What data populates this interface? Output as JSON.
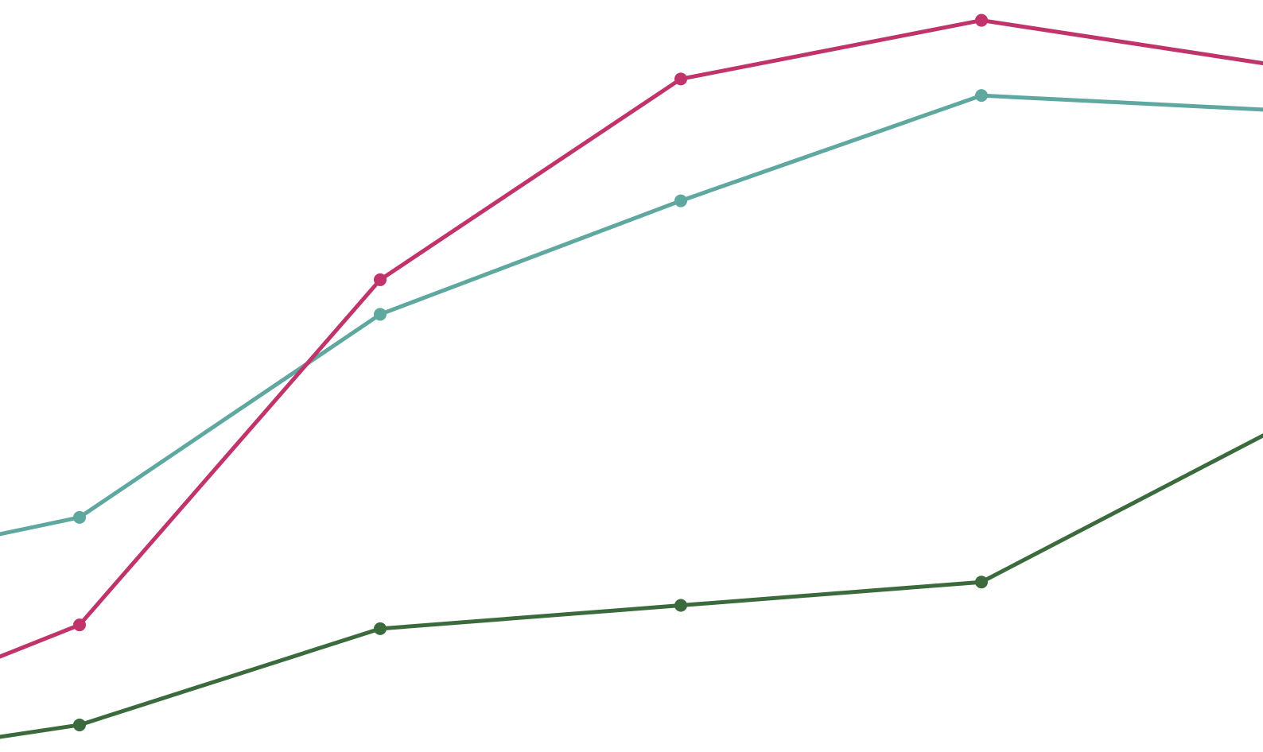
{
  "chart_data": {
    "type": "line",
    "categories": [
      null,
      null,
      null,
      null,
      null,
      null
    ],
    "ylim": [
      0,
      100
    ],
    "series": [
      {
        "color": "#5fa8a0",
        "values": [
          22.8,
          31.2,
          58.2,
          73.3,
          87.3,
          85.3
        ]
      },
      {
        "color": "#c0336b",
        "values": [
          1.0,
          16.9,
          62.8,
          89.5,
          97.3,
          91.2
        ]
      },
      {
        "color": "#3b6b3d",
        "values": [
          -2.4,
          3.6,
          16.4,
          19.5,
          22.6,
          43.4
        ]
      }
    ]
  }
}
